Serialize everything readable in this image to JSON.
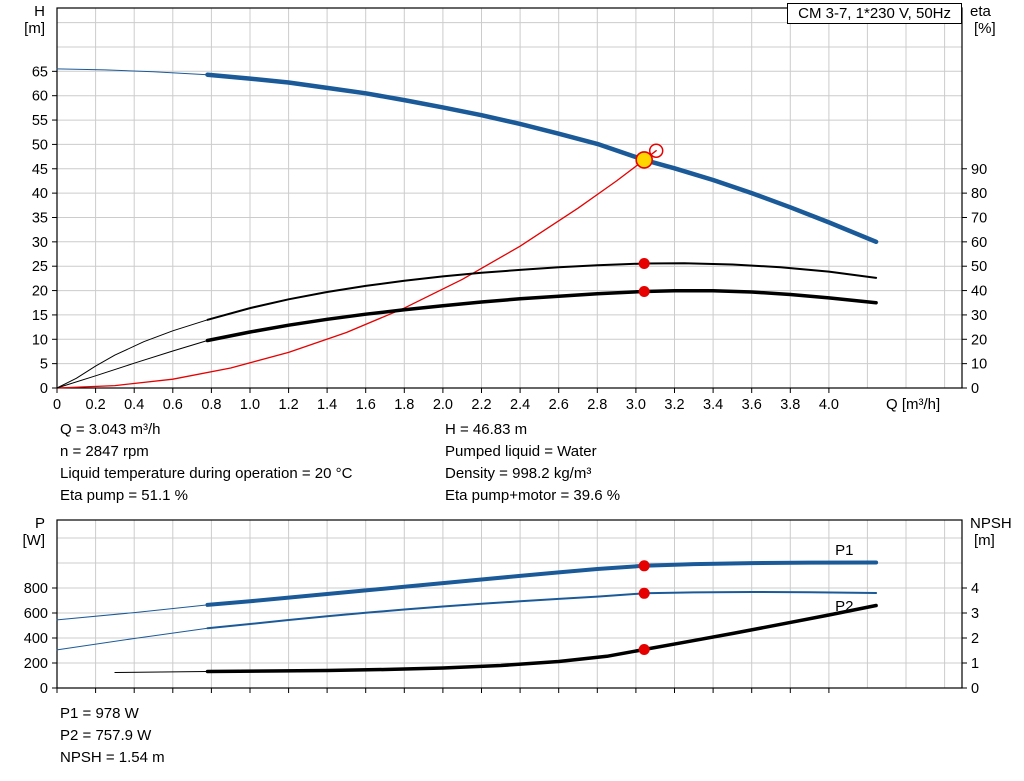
{
  "colors": {
    "blue": "#1b5a99",
    "red": "#e60000",
    "yellow": "#ffd500",
    "black": "#000000",
    "grid": "#cccccc"
  },
  "readouts": {
    "top_left": [
      "Q = 3.043 m³/h",
      "n = 2847 rpm",
      "Liquid temperature during operation = 20 °C",
      "Eta pump = 51.1 %"
    ],
    "top_right": [
      "H = 46.83 m",
      "Pumped liquid = Water",
      "Density = 998.2 kg/m³",
      "Eta pump+motor = 39.6 %"
    ],
    "bottom": [
      "P1 = 978 W",
      "P2 = 757.9 W",
      "NPSH = 1.54 m"
    ]
  },
  "chart_data": [
    {
      "type": "line",
      "title": "CM 3-7, 1*230 V, 50Hz",
      "x": {
        "min": 0,
        "max": 4.69,
        "grid_step": 0.2,
        "label_max": 4.0,
        "show_labels": true,
        "axis_label": "Q [m³/h]"
      },
      "y_left": {
        "name": "H",
        "unit": "[m]",
        "min": 0,
        "max": 78,
        "grid_step": 5,
        "label_max": 65
      },
      "y_right": {
        "name": "eta",
        "unit": "[%]",
        "min": 0,
        "max": 156,
        "tick_step": 10,
        "label_max": 90
      },
      "series": [
        {
          "name": "head-curve-lead",
          "axis": "left",
          "color": "#1b5a99",
          "width": 1,
          "points": [
            [
              0,
              65.5
            ],
            [
              0.25,
              65.3
            ],
            [
              0.5,
              64.9
            ],
            [
              0.78,
              64.3
            ]
          ]
        },
        {
          "name": "head-curve",
          "axis": "left",
          "color": "#1b5a99",
          "width": 4.5,
          "points": [
            [
              0.78,
              64.3
            ],
            [
              1.0,
              63.5
            ],
            [
              1.2,
              62.7
            ],
            [
              1.4,
              61.6
            ],
            [
              1.6,
              60.5
            ],
            [
              1.8,
              59.1
            ],
            [
              2.0,
              57.6
            ],
            [
              2.2,
              56.0
            ],
            [
              2.4,
              54.2
            ],
            [
              2.6,
              52.2
            ],
            [
              2.8,
              50.1
            ],
            [
              3.043,
              46.83
            ],
            [
              3.2,
              45.1
            ],
            [
              3.4,
              42.7
            ],
            [
              3.6,
              40.0
            ],
            [
              3.8,
              37.1
            ],
            [
              4.0,
              34.0
            ],
            [
              4.245,
              30.0
            ]
          ]
        },
        {
          "name": "system-curve",
          "axis": "left",
          "color": "#e60000",
          "width": 1.3,
          "points": [
            [
              0,
              0
            ],
            [
              0.3,
              0.5
            ],
            [
              0.6,
              1.8
            ],
            [
              0.9,
              4.1
            ],
            [
              1.2,
              7.3
            ],
            [
              1.5,
              11.4
            ],
            [
              1.8,
              16.4
            ],
            [
              2.1,
              22.3
            ],
            [
              2.4,
              29.1
            ],
            [
              2.7,
              36.9
            ],
            [
              2.9,
              42.5
            ],
            [
              3.043,
              46.83
            ],
            [
              3.105,
              48.7
            ]
          ]
        },
        {
          "name": "eta-pump-curve-lead",
          "axis": "right",
          "color": "#000000",
          "width": 1,
          "points": [
            [
              0,
              0
            ],
            [
              0.1,
              4
            ],
            [
              0.2,
              9
            ],
            [
              0.3,
              13.5
            ],
            [
              0.45,
              19
            ],
            [
              0.6,
              23.5
            ],
            [
              0.78,
              28
            ]
          ]
        },
        {
          "name": "eta-pump-curve",
          "axis": "right",
          "color": "#000000",
          "width": 2,
          "points": [
            [
              0.78,
              28
            ],
            [
              1.0,
              32.8
            ],
            [
              1.2,
              36.4
            ],
            [
              1.4,
              39.4
            ],
            [
              1.6,
              41.9
            ],
            [
              1.8,
              44.0
            ],
            [
              2.0,
              45.8
            ],
            [
              2.2,
              47.3
            ],
            [
              2.4,
              48.5
            ],
            [
              2.6,
              49.6
            ],
            [
              2.8,
              50.4
            ],
            [
              3.043,
              51.1
            ],
            [
              3.25,
              51.2
            ],
            [
              3.5,
              50.7
            ],
            [
              3.75,
              49.6
            ],
            [
              4.0,
              47.8
            ],
            [
              4.245,
              45.2
            ]
          ]
        },
        {
          "name": "eta-pump-motor-curve-lead",
          "axis": "right",
          "color": "#000000",
          "width": 1,
          "points": [
            [
              0,
              0
            ],
            [
              0.2,
              5
            ],
            [
              0.4,
              10.2
            ],
            [
              0.6,
              15.2
            ],
            [
              0.78,
              19.5
            ]
          ]
        },
        {
          "name": "eta-pump-motor-curve",
          "axis": "right",
          "color": "#000000",
          "width": 3.5,
          "points": [
            [
              0.78,
              19.5
            ],
            [
              1.0,
              23.0
            ],
            [
              1.2,
              25.8
            ],
            [
              1.4,
              28.2
            ],
            [
              1.6,
              30.3
            ],
            [
              1.8,
              32.1
            ],
            [
              2.0,
              33.8
            ],
            [
              2.2,
              35.3
            ],
            [
              2.4,
              36.6
            ],
            [
              2.6,
              37.7
            ],
            [
              2.8,
              38.7
            ],
            [
              3.043,
              39.6
            ],
            [
              3.2,
              39.9
            ],
            [
              3.4,
              39.9
            ],
            [
              3.6,
              39.4
            ],
            [
              3.8,
              38.4
            ],
            [
              4.0,
              37.0
            ],
            [
              4.245,
              35.0
            ]
          ]
        }
      ],
      "labels": [],
      "markers": [
        {
          "type": "open",
          "x": 3.105,
          "y": 48.7,
          "axis": "left"
        },
        {
          "type": "dot",
          "x": 3.043,
          "y": 51.1,
          "axis": "right"
        },
        {
          "type": "dot",
          "x": 3.043,
          "y": 39.6,
          "axis": "right"
        },
        {
          "type": "duty",
          "x": 3.043,
          "y": 46.83,
          "axis": "left"
        }
      ]
    },
    {
      "type": "line",
      "title": "",
      "x": {
        "min": 0,
        "max": 4.69,
        "grid_step": 0.2,
        "label_max": 4.0,
        "show_labels": false,
        "axis_label": ""
      },
      "y_left": {
        "name": "P",
        "unit": "[W]",
        "min": 0,
        "max": 1344,
        "grid_step": 200,
        "label_max": 800
      },
      "y_right": {
        "name": "NPSH",
        "unit": "[m]",
        "min": 0,
        "max": 6.72,
        "tick_step": 1,
        "label_max": 4
      },
      "series": [
        {
          "name": "p1-curve-lead",
          "axis": "left",
          "color": "#1b5a99",
          "width": 1,
          "points": [
            [
              0,
              545
            ],
            [
              0.4,
              603
            ],
            [
              0.78,
              665
            ]
          ]
        },
        {
          "name": "p1-curve",
          "axis": "left",
          "color": "#1b5a99",
          "width": 4,
          "points": [
            [
              0.78,
              665
            ],
            [
              1.0,
              694
            ],
            [
              1.2,
              723
            ],
            [
              1.4,
              752
            ],
            [
              1.6,
              781
            ],
            [
              1.8,
              810
            ],
            [
              2.0,
              839
            ],
            [
              2.2,
              868
            ],
            [
              2.4,
              897
            ],
            [
              2.6,
              925
            ],
            [
              2.8,
              952
            ],
            [
              3.043,
              978
            ],
            [
              3.3,
              991
            ],
            [
              3.6,
              999
            ],
            [
              3.9,
              1003
            ],
            [
              4.245,
              1004
            ]
          ]
        },
        {
          "name": "p2-curve-lead",
          "axis": "left",
          "color": "#1b5a99",
          "width": 1,
          "points": [
            [
              0,
              305
            ],
            [
              0.4,
              396
            ],
            [
              0.78,
              478
            ]
          ]
        },
        {
          "name": "p2-curve",
          "axis": "left",
          "color": "#1b5a99",
          "width": 2,
          "points": [
            [
              0.78,
              478
            ],
            [
              1.0,
              512
            ],
            [
              1.2,
              544
            ],
            [
              1.4,
              574
            ],
            [
              1.6,
              602
            ],
            [
              1.8,
              628
            ],
            [
              2.0,
              652
            ],
            [
              2.2,
              674
            ],
            [
              2.4,
              694
            ],
            [
              2.6,
              713
            ],
            [
              2.8,
              731
            ],
            [
              3.043,
              757.9
            ],
            [
              3.3,
              765
            ],
            [
              3.6,
              768
            ],
            [
              3.9,
              766
            ],
            [
              4.245,
              760
            ]
          ]
        },
        {
          "name": "npsh-curve-lead",
          "axis": "right",
          "color": "#000000",
          "width": 1,
          "points": [
            [
              0.3,
              0.62
            ],
            [
              0.78,
              0.66
            ]
          ]
        },
        {
          "name": "npsh-curve",
          "axis": "right",
          "color": "#000000",
          "width": 3.5,
          "points": [
            [
              0.78,
              0.66
            ],
            [
              1.1,
              0.68
            ],
            [
              1.4,
              0.7
            ],
            [
              1.7,
              0.74
            ],
            [
              2.0,
              0.8
            ],
            [
              2.3,
              0.9
            ],
            [
              2.6,
              1.06
            ],
            [
              2.85,
              1.27
            ],
            [
              3.043,
              1.54
            ],
            [
              3.25,
              1.83
            ],
            [
              3.5,
              2.18
            ],
            [
              3.75,
              2.55
            ],
            [
              4.0,
              2.92
            ],
            [
              4.245,
              3.3
            ]
          ]
        }
      ],
      "labels": [
        {
          "text": "P1",
          "x": 4.08,
          "y": 1065,
          "axis": "left",
          "color": "#1b5a99"
        },
        {
          "text": "P2",
          "x": 4.08,
          "y": 615,
          "axis": "left",
          "color": "#1b5a99"
        }
      ],
      "markers": [
        {
          "type": "dot",
          "x": 3.043,
          "y": 978,
          "axis": "left"
        },
        {
          "type": "dot",
          "x": 3.043,
          "y": 757.9,
          "axis": "left"
        },
        {
          "type": "dot",
          "x": 3.043,
          "y": 1.54,
          "axis": "right"
        }
      ]
    }
  ]
}
